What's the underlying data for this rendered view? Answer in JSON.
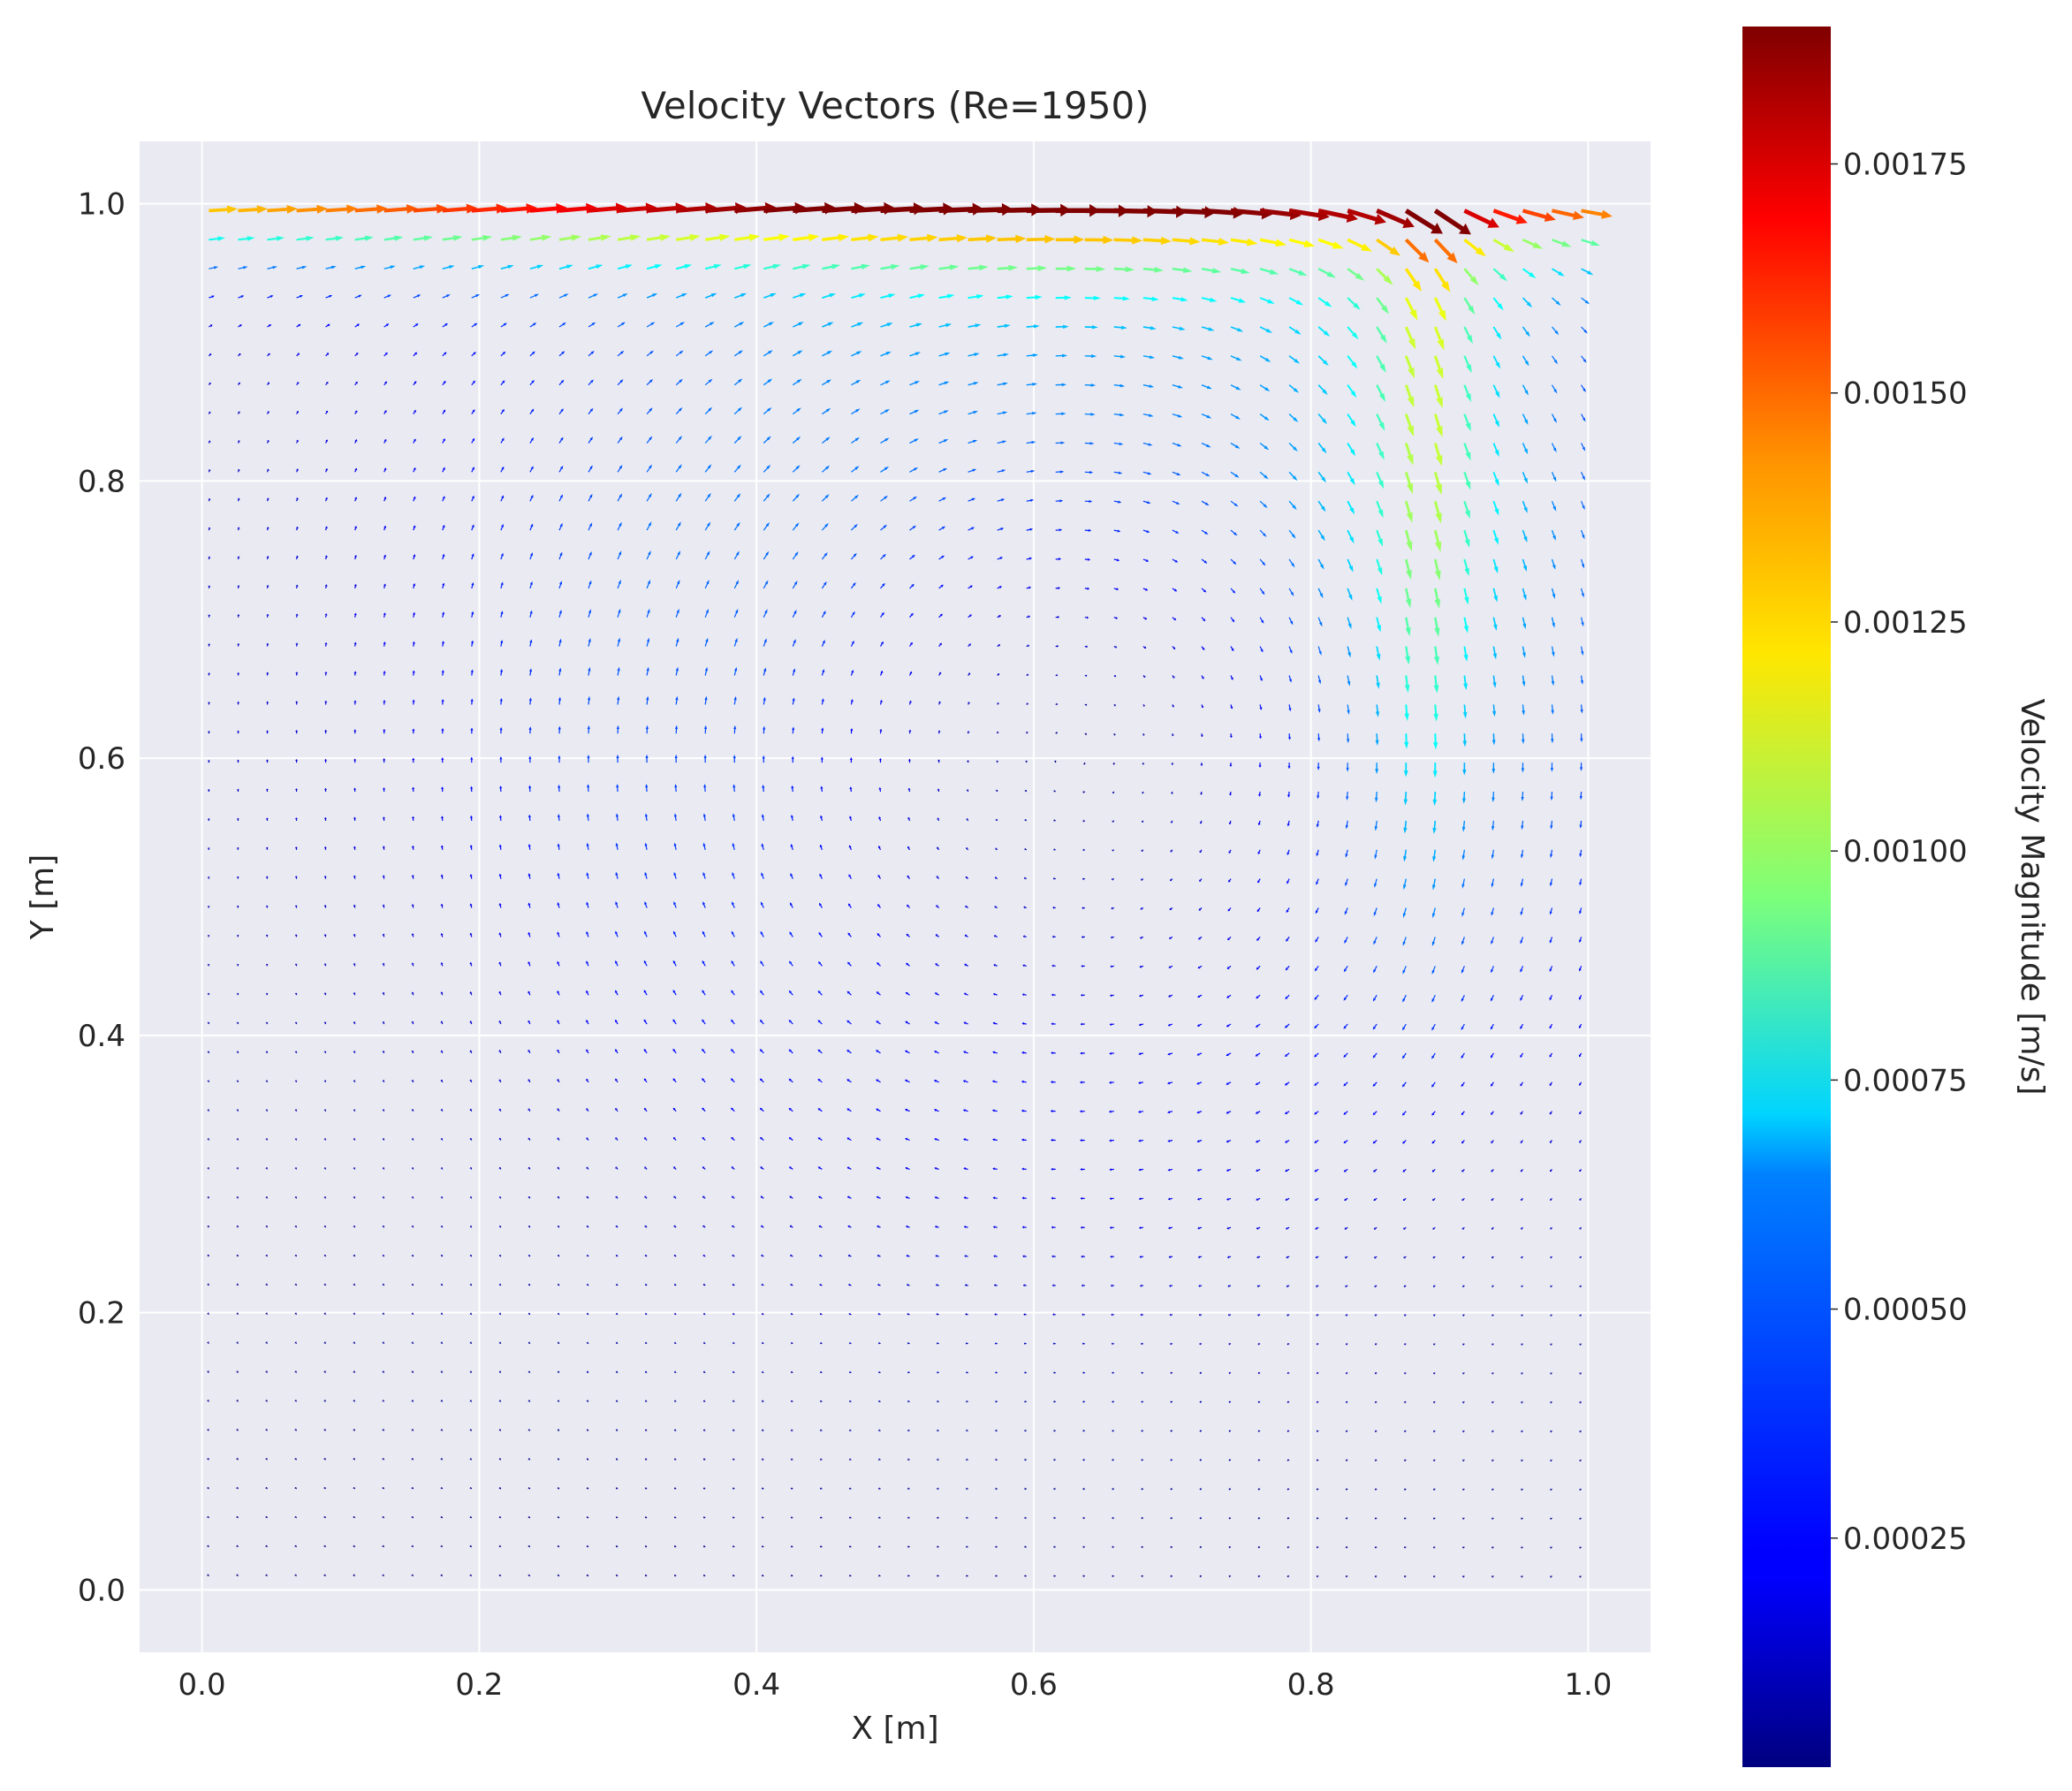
{
  "chart_data": {
    "type": "quiver",
    "title": "Velocity Vectors (Re=1950)",
    "xlabel": "X [m]",
    "ylabel": "Y [m]",
    "xlim": [
      -0.045,
      1.045
    ],
    "ylim": [
      -0.045,
      1.045
    ],
    "xticks": [
      0.0,
      0.2,
      0.4,
      0.6,
      0.8,
      1.0
    ],
    "xtick_labels": [
      "0.0",
      "0.2",
      "0.4",
      "0.6",
      "0.8",
      "1.0"
    ],
    "yticks": [
      0.0,
      0.2,
      0.4,
      0.6,
      0.8,
      1.0
    ],
    "ytick_labels": [
      "0.0",
      "0.2",
      "0.4",
      "0.6",
      "0.8",
      "1.0"
    ],
    "grid": true,
    "background": "#eaeaf2",
    "colormap": "jet",
    "colorbar": {
      "label": "Velocity Magnitude [m/s]",
      "range": [
        0.0,
        0.0019
      ],
      "ticks": [
        0.00025,
        0.0005,
        0.00075,
        0.001,
        0.00125,
        0.0015,
        0.00175
      ],
      "tick_labels": [
        "0.00025",
        "0.00050",
        "0.00075",
        "0.00100",
        "0.00125",
        "0.00150",
        "0.00175"
      ]
    },
    "flow": {
      "description_of_field": "lid-driven cavity, clockwise primary vortex",
      "vortex_center": [
        0.63,
        0.6
      ],
      "lid_velocity_max": 0.0019,
      "grid_nx": 48,
      "grid_ny": 48
    }
  }
}
